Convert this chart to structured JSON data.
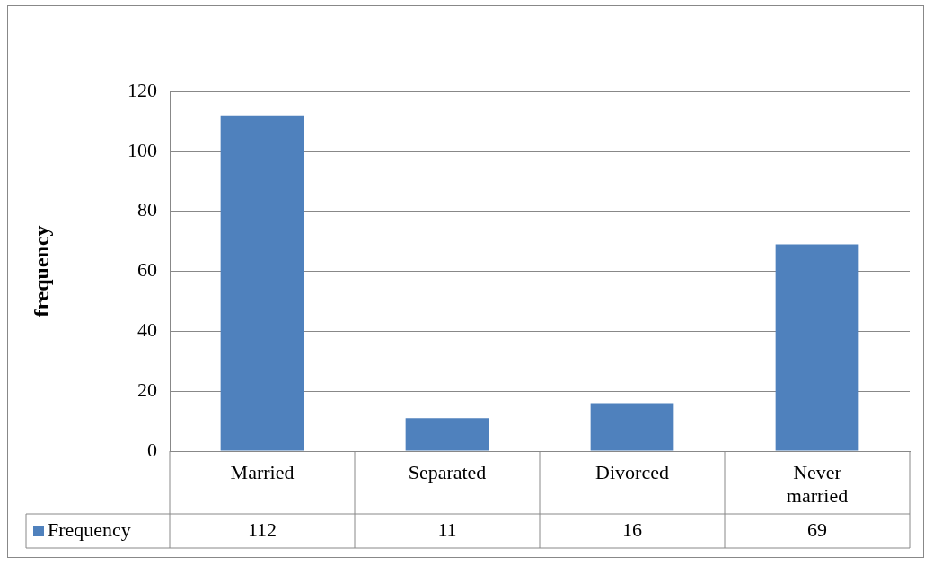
{
  "chart_data": {
    "type": "bar",
    "ylabel": "frequency",
    "categories": [
      "Married",
      "Separated",
      "Divorced",
      "Never married"
    ],
    "series": [
      {
        "name": "Frequency",
        "color": "#4f81bd",
        "values": [
          112,
          11,
          16,
          69
        ]
      }
    ],
    "ylim": [
      0,
      120
    ],
    "yticks": [
      0,
      20,
      40,
      60,
      80,
      100,
      120
    ],
    "grid": "y",
    "legend": "bottom left",
    "data_labels": true
  }
}
